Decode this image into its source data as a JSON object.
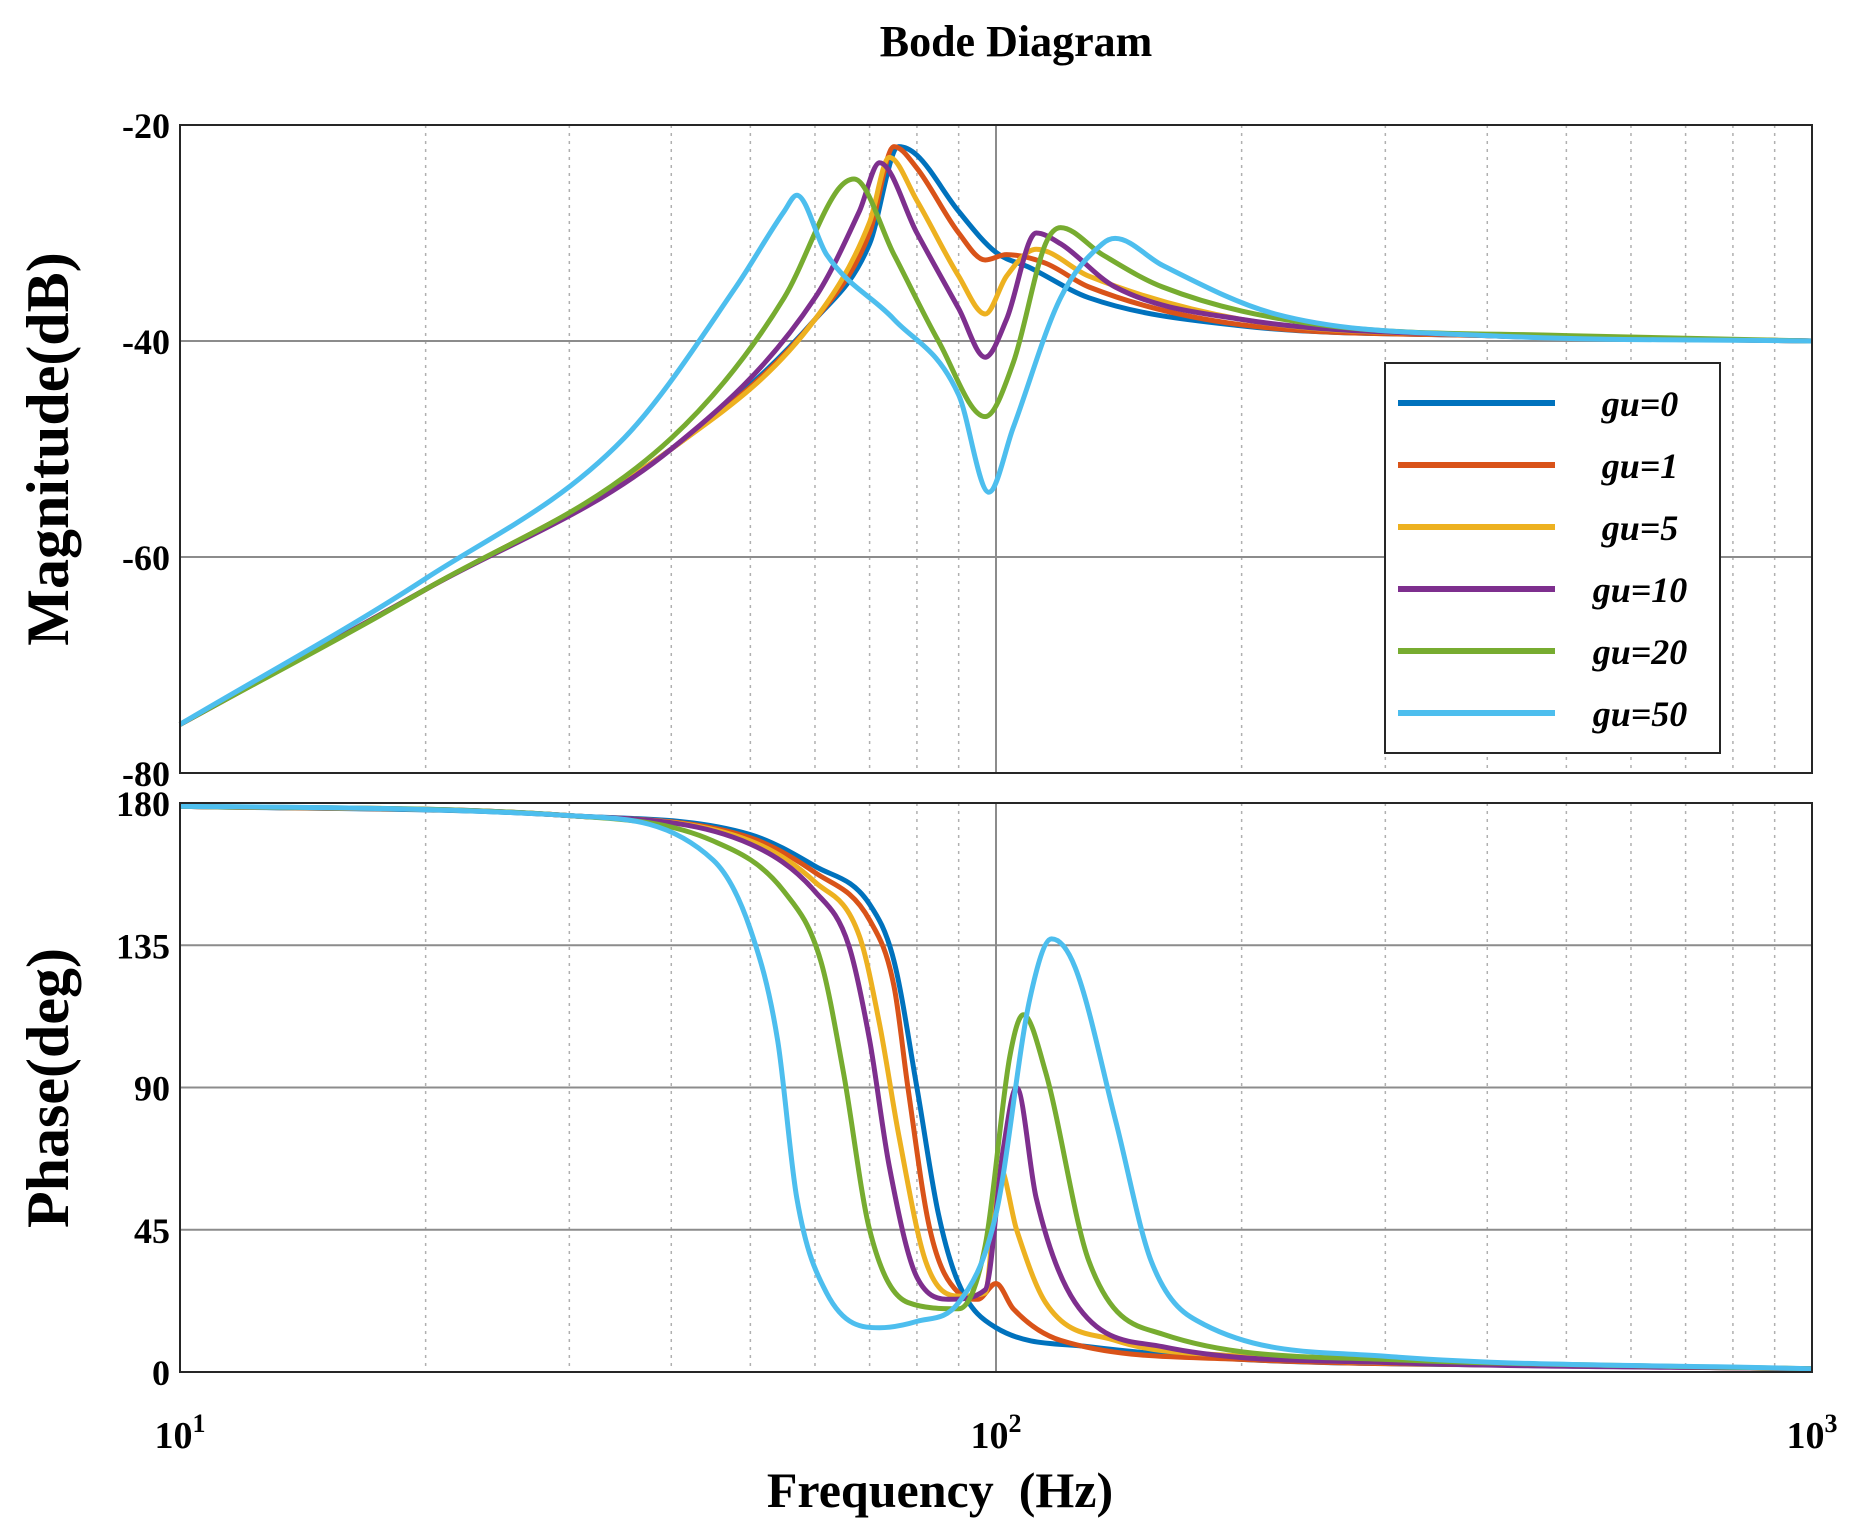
{
  "chart_data": {
    "type": "line",
    "title": "Bode Diagram",
    "xlabel": "Frequency  (Hz)",
    "x_scale": "log",
    "xlim": [
      10,
      1000
    ],
    "x_ticks": [
      {
        "value": 10,
        "base": "10",
        "exp": "1"
      },
      {
        "value": 100,
        "base": "10",
        "exp": "2"
      },
      {
        "value": 1000,
        "base": "10",
        "exp": "3"
      }
    ],
    "grid": true,
    "legend_position": "inside-right of magnitude panel",
    "panels": [
      {
        "name": "magnitude",
        "ylabel": "Magnitude(dB)",
        "ylim": [
          -80,
          -20
        ],
        "y_ticks": [
          "-20",
          "-40",
          "-60",
          "-80"
        ]
      },
      {
        "name": "phase",
        "ylabel": "Phase(deg)",
        "ylim": [
          0,
          180
        ],
        "y_ticks": [
          "180",
          "135",
          "90",
          "45",
          "0"
        ]
      }
    ],
    "series": [
      {
        "name": "gu=0",
        "color": "#0072BD",
        "magnitude": [
          [
            10,
            -75.5
          ],
          [
            20,
            -63
          ],
          [
            40,
            -50
          ],
          [
            60,
            -38
          ],
          [
            70,
            -31
          ],
          [
            76,
            -22
          ],
          [
            80,
            -22.8
          ],
          [
            90,
            -28
          ],
          [
            100,
            -31.8
          ],
          [
            110,
            -33.2
          ],
          [
            130,
            -36
          ],
          [
            200,
            -38.6
          ],
          [
            400,
            -39.5
          ],
          [
            1000,
            -40
          ]
        ],
        "phase": [
          [
            10,
            179
          ],
          [
            30,
            176
          ],
          [
            50,
            170
          ],
          [
            60,
            160
          ],
          [
            70,
            148
          ],
          [
            75,
            130
          ],
          [
            80,
            90
          ],
          [
            85,
            50
          ],
          [
            90,
            28
          ],
          [
            100,
            14
          ],
          [
            130,
            8
          ],
          [
            200,
            4
          ],
          [
            500,
            2
          ],
          [
            1000,
            1
          ]
        ]
      },
      {
        "name": "gu=1",
        "color": "#D95319",
        "magnitude": [
          [
            10,
            -75.5
          ],
          [
            20,
            -63
          ],
          [
            40,
            -50
          ],
          [
            60,
            -38
          ],
          [
            70,
            -30
          ],
          [
            75,
            -22
          ],
          [
            80,
            -24
          ],
          [
            90,
            -30
          ],
          [
            97,
            -32.5
          ],
          [
            103,
            -32
          ],
          [
            115,
            -32.8
          ],
          [
            130,
            -35
          ],
          [
            200,
            -38.5
          ],
          [
            400,
            -39.5
          ],
          [
            1000,
            -40
          ]
        ],
        "phase": [
          [
            10,
            179
          ],
          [
            30,
            176
          ],
          [
            50,
            169
          ],
          [
            60,
            158
          ],
          [
            70,
            143
          ],
          [
            75,
            122
          ],
          [
            78,
            90
          ],
          [
            83,
            45
          ],
          [
            90,
            25
          ],
          [
            95,
            23
          ],
          [
            100,
            28
          ],
          [
            105,
            20
          ],
          [
            120,
            10
          ],
          [
            200,
            4
          ],
          [
            500,
            2
          ],
          [
            1000,
            1
          ]
        ]
      },
      {
        "name": "gu=5",
        "color": "#EDB120",
        "magnitude": [
          [
            10,
            -75.5
          ],
          [
            20,
            -63
          ],
          [
            40,
            -50
          ],
          [
            60,
            -38
          ],
          [
            70,
            -29
          ],
          [
            74,
            -23
          ],
          [
            80,
            -27
          ],
          [
            90,
            -34
          ],
          [
            97,
            -37.5
          ],
          [
            103,
            -34
          ],
          [
            112,
            -31.5
          ],
          [
            130,
            -34
          ],
          [
            200,
            -38
          ],
          [
            400,
            -39.5
          ],
          [
            1000,
            -40
          ]
        ],
        "phase": [
          [
            10,
            179
          ],
          [
            30,
            176
          ],
          [
            50,
            168
          ],
          [
            60,
            155
          ],
          [
            68,
            138
          ],
          [
            72,
            110
          ],
          [
            76,
            75
          ],
          [
            82,
            35
          ],
          [
            90,
            24
          ],
          [
            97,
            25
          ],
          [
            101,
            65
          ],
          [
            106,
            45
          ],
          [
            115,
            22
          ],
          [
            140,
            10
          ],
          [
            200,
            5
          ],
          [
            500,
            2
          ],
          [
            1000,
            1
          ]
        ]
      },
      {
        "name": "gu=10",
        "color": "#7E2F8E",
        "magnitude": [
          [
            10,
            -75.5
          ],
          [
            20,
            -63
          ],
          [
            40,
            -50
          ],
          [
            60,
            -36
          ],
          [
            68,
            -28
          ],
          [
            72,
            -23.5
          ],
          [
            80,
            -30
          ],
          [
            90,
            -37
          ],
          [
            97,
            -41.5
          ],
          [
            103,
            -38
          ],
          [
            112,
            -30
          ],
          [
            120,
            -31
          ],
          [
            140,
            -35
          ],
          [
            200,
            -38
          ],
          [
            400,
            -39.5
          ],
          [
            1000,
            -40
          ]
        ],
        "phase": [
          [
            10,
            179
          ],
          [
            30,
            176
          ],
          [
            50,
            167
          ],
          [
            60,
            152
          ],
          [
            66,
            135
          ],
          [
            70,
            105
          ],
          [
            74,
            65
          ],
          [
            80,
            30
          ],
          [
            88,
            23
          ],
          [
            97,
            26
          ],
          [
            102,
            70
          ],
          [
            106,
            90
          ],
          [
            112,
            55
          ],
          [
            125,
            22
          ],
          [
            160,
            8
          ],
          [
            300,
            3
          ],
          [
            1000,
            1
          ]
        ]
      },
      {
        "name": "gu=20",
        "color": "#77AC30",
        "magnitude": [
          [
            10,
            -75.5
          ],
          [
            20,
            -63
          ],
          [
            40,
            -49
          ],
          [
            55,
            -36
          ],
          [
            64,
            -26
          ],
          [
            67,
            -25
          ],
          [
            75,
            -32
          ],
          [
            85,
            -40
          ],
          [
            97,
            -47
          ],
          [
            105,
            -42
          ],
          [
            115,
            -31
          ],
          [
            120,
            -29.5
          ],
          [
            135,
            -32
          ],
          [
            160,
            -35
          ],
          [
            250,
            -38.5
          ],
          [
            500,
            -39.5
          ],
          [
            1000,
            -40
          ]
        ],
        "phase": [
          [
            10,
            179
          ],
          [
            30,
            176
          ],
          [
            45,
            168
          ],
          [
            55,
            152
          ],
          [
            61,
            130
          ],
          [
            65,
            95
          ],
          [
            70,
            45
          ],
          [
            78,
            22
          ],
          [
            90,
            20
          ],
          [
            97,
            40
          ],
          [
            104,
            100
          ],
          [
            108,
            113
          ],
          [
            115,
            95
          ],
          [
            130,
            35
          ],
          [
            160,
            12
          ],
          [
            300,
            4
          ],
          [
            1000,
            1
          ]
        ]
      },
      {
        "name": "gu=50",
        "color": "#4DBEEE",
        "magnitude": [
          [
            10,
            -75.5
          ],
          [
            20,
            -62
          ],
          [
            35,
            -49
          ],
          [
            48,
            -35
          ],
          [
            55,
            -28
          ],
          [
            57,
            -26.5
          ],
          [
            62,
            -32
          ],
          [
            75,
            -38
          ],
          [
            90,
            -45
          ],
          [
            98,
            -54
          ],
          [
            105,
            -48
          ],
          [
            120,
            -36
          ],
          [
            135,
            -31
          ],
          [
            140,
            -30.5
          ],
          [
            160,
            -33
          ],
          [
            220,
            -37.5
          ],
          [
            400,
            -39.5
          ],
          [
            1000,
            -40
          ]
        ],
        "phase": [
          [
            10,
            179
          ],
          [
            30,
            176
          ],
          [
            45,
            162
          ],
          [
            50,
            140
          ],
          [
            54,
            105
          ],
          [
            57,
            55
          ],
          [
            62,
            25
          ],
          [
            72,
            14
          ],
          [
            80,
            16
          ],
          [
            90,
            22
          ],
          [
            100,
            50
          ],
          [
            110,
            118
          ],
          [
            117,
            137
          ],
          [
            125,
            128
          ],
          [
            140,
            80
          ],
          [
            155,
            35
          ],
          [
            180,
            15
          ],
          [
            300,
            5
          ],
          [
            1000,
            1
          ]
        ]
      }
    ]
  }
}
